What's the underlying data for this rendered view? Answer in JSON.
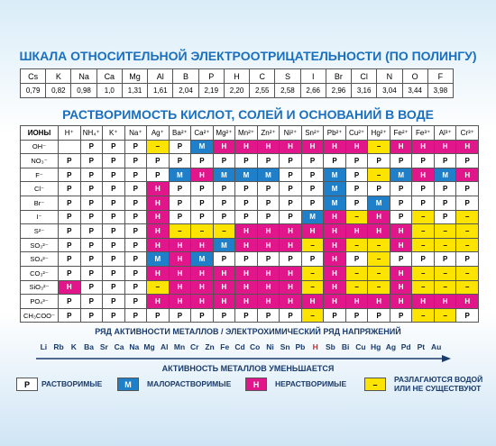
{
  "title": "ШКАЛА ОТНОСИТЕЛЬНОЙ ЭЛЕКТРООТРИЦАТЕЛЬНОСТИ (ПО ПОЛИНГУ)",
  "scale": {
    "elements": [
      "Cs",
      "K",
      "Na",
      "Ca",
      "Mg",
      "Al",
      "B",
      "P",
      "H",
      "C",
      "S",
      "I",
      "Br",
      "Cl",
      "N",
      "O",
      "F"
    ],
    "values": [
      "0,79",
      "0,82",
      "0,98",
      "1,0",
      "1,31",
      "1,61",
      "2,04",
      "2,19",
      "2,20",
      "2,55",
      "2,58",
      "2,66",
      "2,96",
      "3,16",
      "3,04",
      "3,44",
      "3,98"
    ]
  },
  "solubility": {
    "title": "РАСТВОРИМОСТЬ КИСЛОТ, СОЛЕЙ И ОСНОВАНИЙ В ВОДЕ",
    "corner": "ИОНЫ",
    "cations": [
      "H⁺",
      "NH₄⁺",
      "K⁺",
      "Na⁺",
      "Ag⁺",
      "Ba²⁺",
      "Ca²⁺",
      "Mg²⁺",
      "Mn²⁺",
      "Zn²⁺",
      "Ni²⁺",
      "Sn²⁺",
      "Pb²⁺",
      "Cu²⁺",
      "Hg²⁺",
      "Fe²⁺",
      "Fe³⁺",
      "Al³⁺",
      "Cr³⁺"
    ],
    "anions": [
      "OH⁻",
      "NO₃⁻",
      "F⁻",
      "Cl⁻",
      "Br⁻",
      "I⁻",
      "S²⁻",
      "SO₃²⁻",
      "SO₄²⁻",
      "CO₃²⁻",
      "SiO₃²⁻",
      "PO₄³⁻",
      "CH₃COO⁻"
    ],
    "rows": [
      [
        null,
        "Р",
        "Р",
        "Р",
        "–",
        "Р",
        "М",
        "Н",
        "Н",
        "Н",
        "Н",
        "Н",
        "Н",
        "Н",
        "–",
        "Н",
        "Н",
        "Н",
        "Н"
      ],
      [
        "Р",
        "Р",
        "Р",
        "Р",
        "Р",
        "Р",
        "Р",
        "Р",
        "Р",
        "Р",
        "Р",
        "Р",
        "Р",
        "Р",
        "Р",
        "Р",
        "Р",
        "Р",
        "Р"
      ],
      [
        "Р",
        "Р",
        "Р",
        "Р",
        "Р",
        "М",
        "Н",
        "М",
        "М",
        "М",
        "Р",
        "Р",
        "М",
        "Р",
        "–",
        "М",
        "Н",
        "М",
        "Н"
      ],
      [
        "Р",
        "Р",
        "Р",
        "Р",
        "Н",
        "Р",
        "Р",
        "Р",
        "Р",
        "Р",
        "Р",
        "Р",
        "М",
        "Р",
        "Р",
        "Р",
        "Р",
        "Р",
        "Р"
      ],
      [
        "Р",
        "Р",
        "Р",
        "Р",
        "Н",
        "Р",
        "Р",
        "Р",
        "Р",
        "Р",
        "Р",
        "Р",
        "М",
        "Р",
        "М",
        "Р",
        "Р",
        "Р",
        "Р"
      ],
      [
        "Р",
        "Р",
        "Р",
        "Р",
        "Н",
        "Р",
        "Р",
        "Р",
        "Р",
        "Р",
        "Р",
        "М",
        "Н",
        "–",
        "Н",
        "Р",
        "–",
        "Р",
        "–"
      ],
      [
        "Р",
        "Р",
        "Р",
        "Р",
        "Н",
        "–",
        "–",
        "–",
        "Н",
        "Н",
        "Н",
        "Н",
        "Н",
        "Н",
        "Н",
        "Н",
        "–",
        "–",
        "–"
      ],
      [
        "Р",
        "Р",
        "Р",
        "Р",
        "Н",
        "Н",
        "Н",
        "М",
        "Н",
        "Н",
        "Н",
        "–",
        "Н",
        "–",
        "–",
        "Н",
        "–",
        "–",
        "–"
      ],
      [
        "Р",
        "Р",
        "Р",
        "Р",
        "М",
        "Н",
        "М",
        "Р",
        "Р",
        "Р",
        "Р",
        "Р",
        "Н",
        "Р",
        "–",
        "Р",
        "Р",
        "Р",
        "Р"
      ],
      [
        "Р",
        "Р",
        "Р",
        "Р",
        "Н",
        "Н",
        "Н",
        "Н",
        "Н",
        "Н",
        "Н",
        "–",
        "Н",
        "–",
        "–",
        "Н",
        "–",
        "–",
        "–"
      ],
      [
        "Н",
        "Р",
        "Р",
        "Р",
        "–",
        "Н",
        "Н",
        "Н",
        "Н",
        "Н",
        "Н",
        "–",
        "Н",
        "–",
        "–",
        "Н",
        "–",
        "–",
        "–"
      ],
      [
        "Р",
        "Р",
        "Р",
        "Р",
        "Н",
        "Н",
        "Н",
        "Н",
        "Н",
        "Н",
        "Н",
        "Н",
        "Н",
        "Н",
        "Н",
        "Н",
        "Н",
        "Н",
        "Н"
      ],
      [
        "Р",
        "Р",
        "Р",
        "Р",
        "Р",
        "Р",
        "Р",
        "Р",
        "Р",
        "Р",
        "Р",
        "–",
        "Р",
        "Р",
        "Р",
        "Р",
        "–",
        "–",
        "Р"
      ]
    ]
  },
  "activity": {
    "title": "РЯД АКТИВНОСТИ МЕТАЛЛОВ / ЭЛЕКТРОХИМИЧЕСКИЙ РЯД НАПРЯЖЕНИЙ",
    "metals": [
      "Li",
      "Rb",
      "K",
      "Ba",
      "Sr",
      "Ca",
      "Na",
      "Mg",
      "Al",
      "Mn",
      "Cr",
      "Zn",
      "Fe",
      "Cd",
      "Co",
      "Ni",
      "Sn",
      "Pb",
      "H",
      "Sb",
      "Bi",
      "Cu",
      "Hg",
      "Ag",
      "Pd",
      "Pt",
      "Au"
    ],
    "highlight_index": 18,
    "caption": "АКТИВНОСТЬ МЕТАЛЛОВ УМЕНЬШАЕТСЯ"
  },
  "legend": [
    {
      "symbol": "Р",
      "label": "РАСТВОРИМЫЕ",
      "color": "#ffffff"
    },
    {
      "symbol": "М",
      "label": "МАЛОРАСТВОРИМЫЕ",
      "color": "#1f7fc9"
    },
    {
      "symbol": "Н",
      "label": "НЕРАСТВОРИМЫЕ",
      "color": "#e2168b"
    },
    {
      "symbol": "–",
      "label": "РАЗЛАГАЮТСЯ ВОДОЙ ИЛИ НЕ СУЩЕСТВУЮТ",
      "color": "#fde300"
    }
  ]
}
